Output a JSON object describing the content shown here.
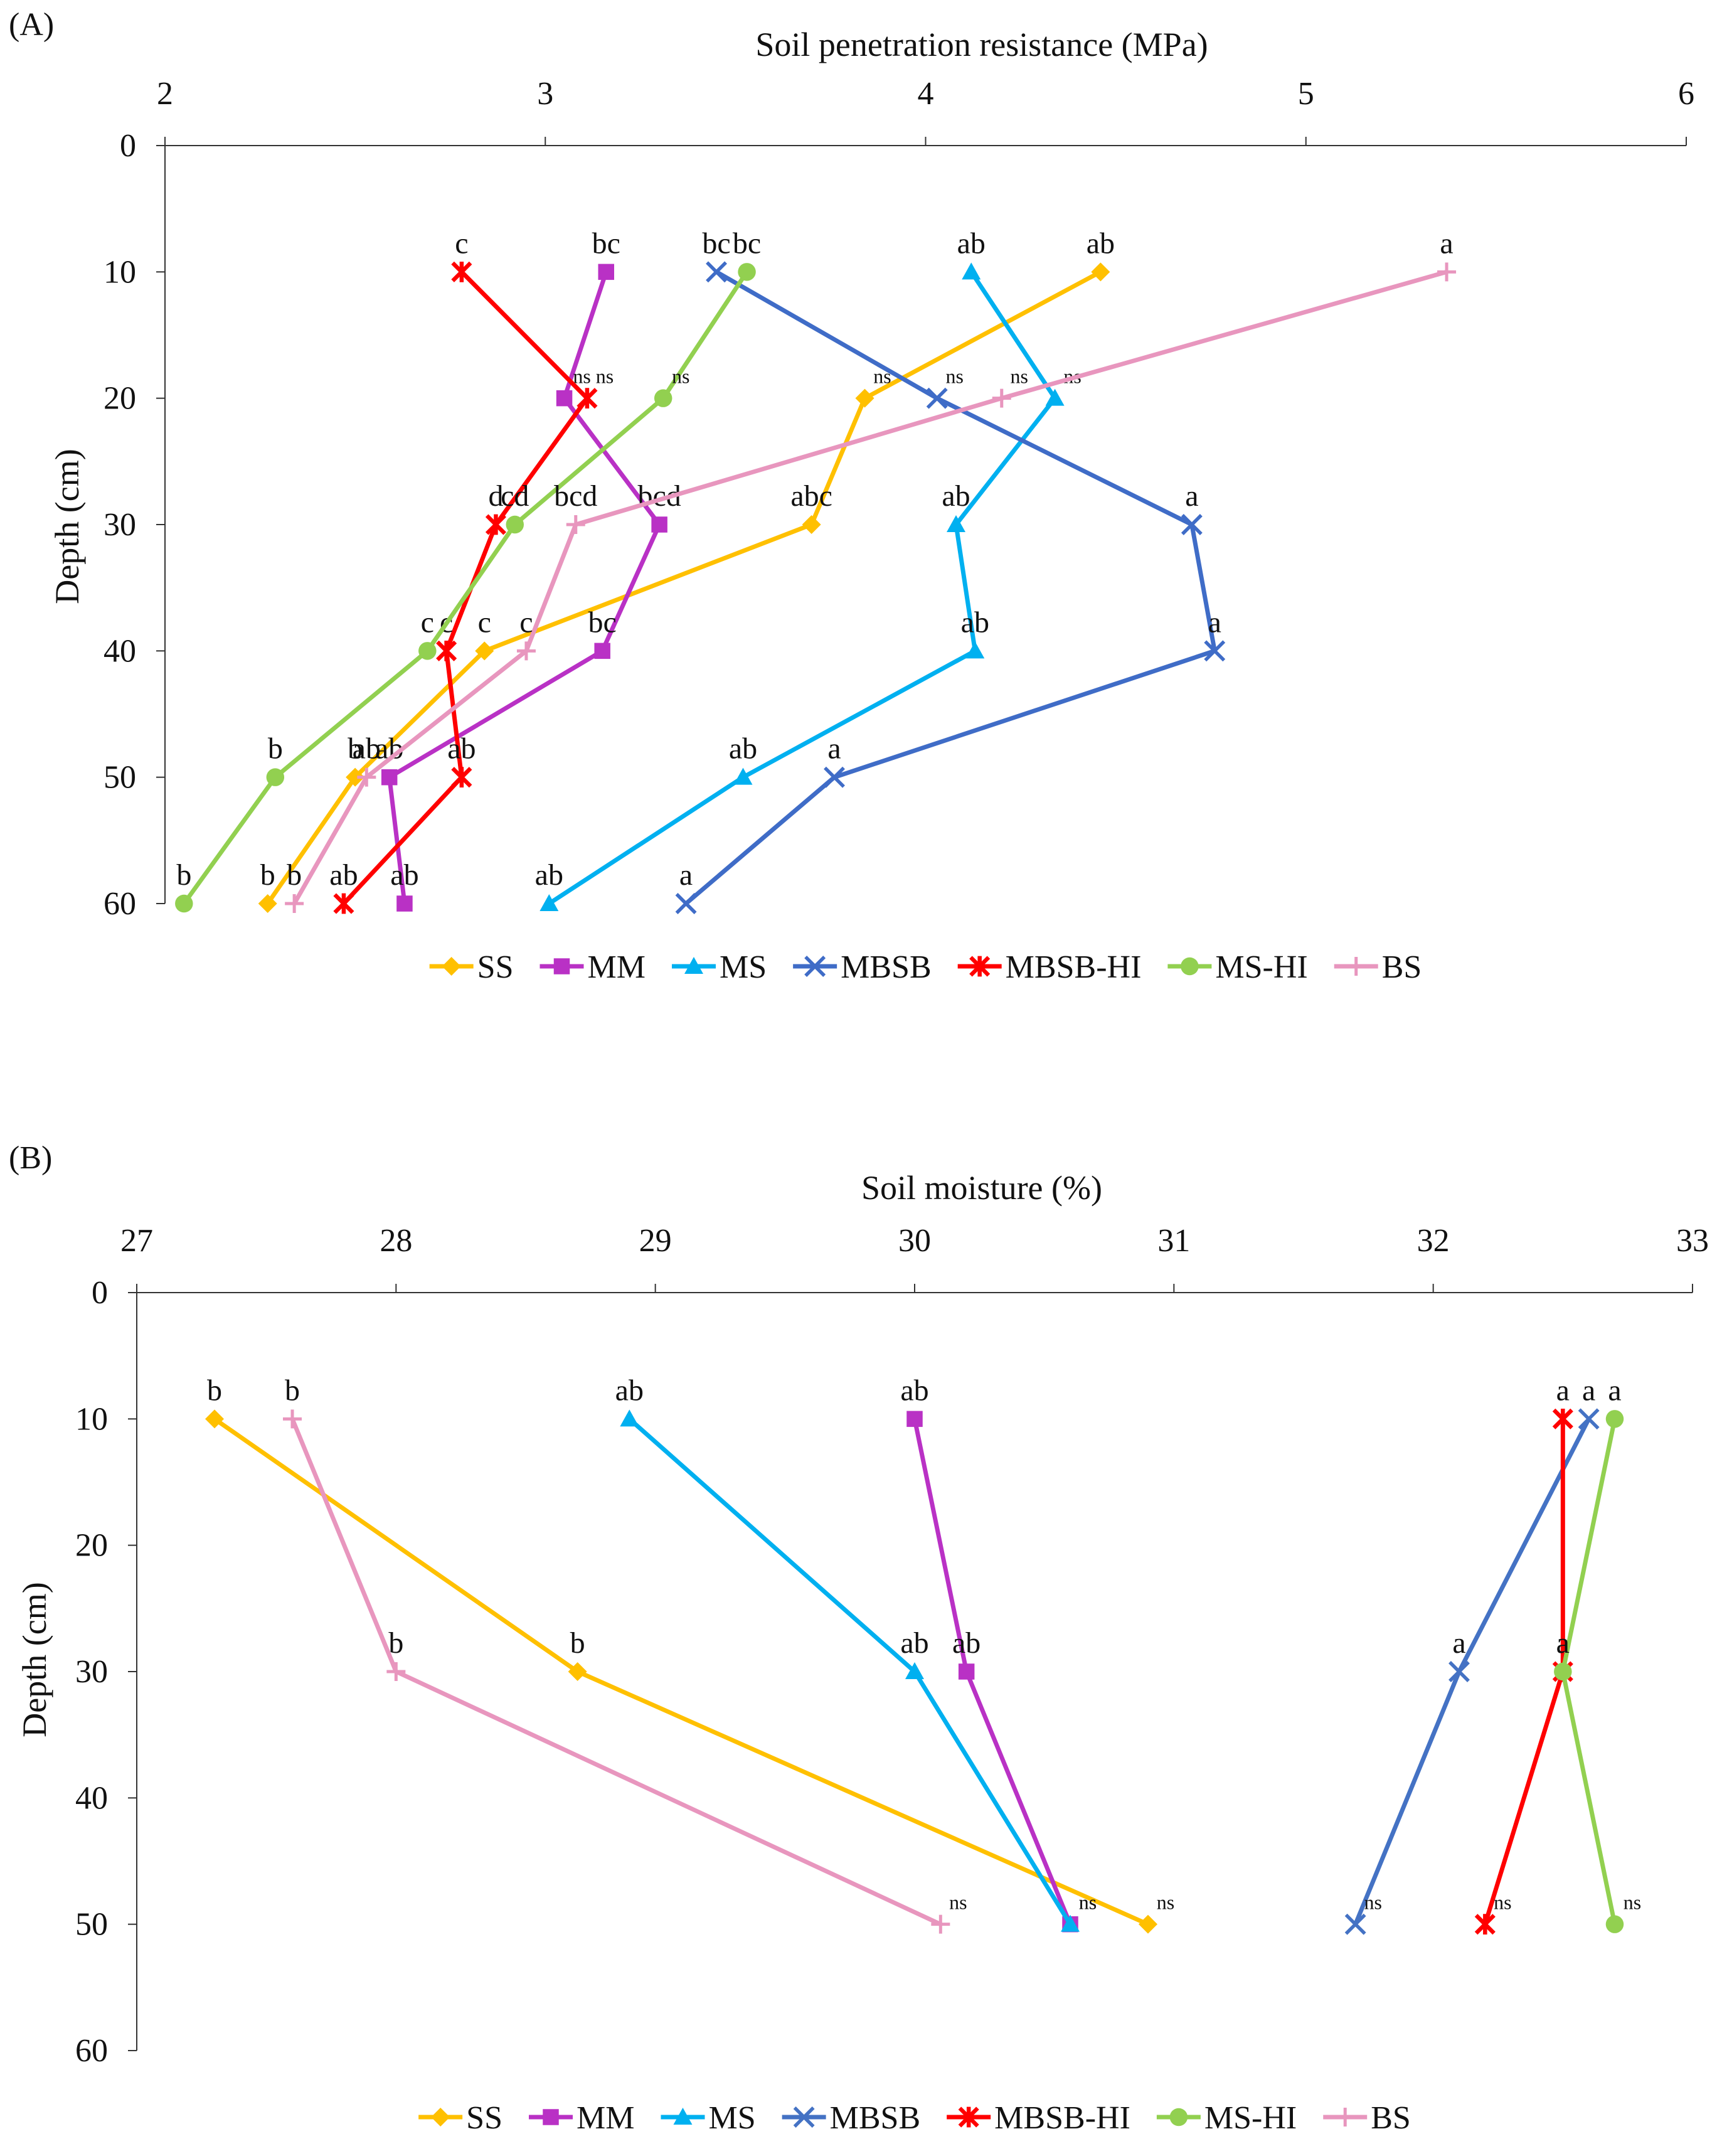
{
  "panels": [
    {
      "id": "A",
      "label": "(A)",
      "chart_data": {
        "type": "line",
        "title": "",
        "xlabel": "Soil penetration resistance (MPa)",
        "ylabel": "Depth (cm)",
        "xlim": [
          2,
          6
        ],
        "ylim": [
          0,
          60
        ],
        "xticks": [
          2,
          3,
          4,
          5,
          6
        ],
        "yticks": [
          0,
          10,
          20,
          30,
          40,
          50,
          60
        ],
        "x_axis_position": "top",
        "y_inverted": true,
        "grid": false,
        "legend_position": "bottom",
        "series": [
          {
            "name": "SS",
            "color": "#FFC000",
            "marker": "diamond",
            "points": [
              {
                "x": 4.46,
                "y": 10,
                "label": "ab"
              },
              {
                "x": 3.84,
                "y": 20,
                "label": "ns"
              },
              {
                "x": 3.7,
                "y": 30,
                "label": "abc"
              },
              {
                "x": 2.84,
                "y": 40,
                "label": "c"
              },
              {
                "x": 2.5,
                "y": 50,
                "label": "b"
              },
              {
                "x": 2.27,
                "y": 60,
                "label": "b"
              }
            ]
          },
          {
            "name": "MM",
            "color": "#B931C5",
            "marker": "square",
            "points": [
              {
                "x": 3.16,
                "y": 10,
                "label": "bc"
              },
              {
                "x": 3.05,
                "y": 20,
                "label": "ns"
              },
              {
                "x": 3.3,
                "y": 30,
                "label": "bcd"
              },
              {
                "x": 3.15,
                "y": 40,
                "label": "bc"
              },
              {
                "x": 2.59,
                "y": 50,
                "label": "ab"
              },
              {
                "x": 2.63,
                "y": 60,
                "label": "ab"
              }
            ]
          },
          {
            "name": "MS",
            "color": "#00B0F0",
            "marker": "triangle",
            "points": [
              {
                "x": 4.12,
                "y": 10,
                "label": "ab"
              },
              {
                "x": 4.34,
                "y": 20,
                "label": "ns"
              },
              {
                "x": 4.08,
                "y": 30,
                "label": "ab"
              },
              {
                "x": 4.13,
                "y": 40,
                "label": "ab"
              },
              {
                "x": 3.52,
                "y": 50,
                "label": "ab"
              },
              {
                "x": 3.01,
                "y": 60,
                "label": "ab"
              }
            ]
          },
          {
            "name": "MBSB",
            "color": "#3F6CC7",
            "marker": "x",
            "points": [
              {
                "x": 3.45,
                "y": 10,
                "label": "bc"
              },
              {
                "x": 4.03,
                "y": 20,
                "label": "ns"
              },
              {
                "x": 4.7,
                "y": 30,
                "label": "a"
              },
              {
                "x": 4.76,
                "y": 40,
                "label": "a"
              },
              {
                "x": 3.76,
                "y": 50,
                "label": "a"
              },
              {
                "x": 3.37,
                "y": 60,
                "label": "a"
              }
            ]
          },
          {
            "name": "MBSB-HI",
            "color": "#FF0000",
            "marker": "star",
            "points": [
              {
                "x": 2.78,
                "y": 10,
                "label": "c"
              },
              {
                "x": 3.11,
                "y": 20,
                "label": "ns"
              },
              {
                "x": 2.87,
                "y": 30,
                "label": "d"
              },
              {
                "x": 2.74,
                "y": 40,
                "label": "c"
              },
              {
                "x": 2.78,
                "y": 50,
                "label": "ab"
              },
              {
                "x": 2.47,
                "y": 60,
                "label": "ab"
              }
            ]
          },
          {
            "name": "MS-HI",
            "color": "#92D050",
            "marker": "circle",
            "points": [
              {
                "x": 3.53,
                "y": 10,
                "label": "bc"
              },
              {
                "x": 3.31,
                "y": 20,
                "label": "ns"
              },
              {
                "x": 2.92,
                "y": 30,
                "label": "cd"
              },
              {
                "x": 2.69,
                "y": 40,
                "label": "c"
              },
              {
                "x": 2.29,
                "y": 50,
                "label": "b"
              },
              {
                "x": 2.05,
                "y": 60,
                "label": "b"
              }
            ]
          },
          {
            "name": "BS",
            "color": "#E896BE",
            "marker": "plus",
            "points": [
              {
                "x": 5.37,
                "y": 10,
                "label": "a"
              },
              {
                "x": 4.2,
                "y": 20,
                "label": "ns"
              },
              {
                "x": 3.08,
                "y": 30,
                "label": "bcd"
              },
              {
                "x": 2.95,
                "y": 40,
                "label": "c"
              },
              {
                "x": 2.53,
                "y": 50,
                "label": "ab"
              },
              {
                "x": 2.34,
                "y": 60,
                "label": "b"
              }
            ]
          }
        ]
      }
    },
    {
      "id": "B",
      "label": "(B)",
      "chart_data": {
        "type": "line",
        "title": "",
        "xlabel": "Soil moisture (%)",
        "ylabel": "Depth (cm)",
        "xlim": [
          27,
          33
        ],
        "ylim": [
          0,
          60
        ],
        "xticks": [
          27,
          28,
          29,
          30,
          31,
          32,
          33
        ],
        "yticks": [
          0,
          10,
          20,
          30,
          40,
          50,
          60
        ],
        "x_axis_position": "top",
        "y_inverted": true,
        "grid": false,
        "legend_position": "bottom",
        "series": [
          {
            "name": "SS",
            "color": "#FFC000",
            "marker": "diamond",
            "points": [
              {
                "x": 27.3,
                "y": 10,
                "label": "b"
              },
              {
                "x": 28.7,
                "y": 30,
                "label": "b"
              },
              {
                "x": 30.9,
                "y": 50,
                "label": "ns"
              }
            ]
          },
          {
            "name": "MM",
            "color": "#B931C5",
            "marker": "square",
            "points": [
              {
                "x": 30.0,
                "y": 10,
                "label": "ab"
              },
              {
                "x": 30.2,
                "y": 30,
                "label": "ab"
              },
              {
                "x": 30.6,
                "y": 50,
                "label": "ns"
              }
            ]
          },
          {
            "name": "MS",
            "color": "#00B0F0",
            "marker": "triangle",
            "points": [
              {
                "x": 28.9,
                "y": 10,
                "label": "ab"
              },
              {
                "x": 30.0,
                "y": 30,
                "label": "ab"
              },
              {
                "x": 30.6,
                "y": 50,
                "label": "ns"
              }
            ]
          },
          {
            "name": "MBSB",
            "color": "#4472C4",
            "marker": "x",
            "points": [
              {
                "x": 32.6,
                "y": 10,
                "label": "a"
              },
              {
                "x": 32.1,
                "y": 30,
                "label": "a"
              },
              {
                "x": 31.7,
                "y": 50,
                "label": "ns"
              }
            ]
          },
          {
            "name": "MBSB-HI",
            "color": "#FF0000",
            "marker": "star",
            "points": [
              {
                "x": 32.5,
                "y": 10,
                "label": "a"
              },
              {
                "x": 32.5,
                "y": 30,
                "label": "a"
              },
              {
                "x": 32.2,
                "y": 50,
                "label": "ns"
              }
            ]
          },
          {
            "name": "MS-HI",
            "color": "#92D050",
            "marker": "circle",
            "points": [
              {
                "x": 32.7,
                "y": 10,
                "label": "a"
              },
              {
                "x": 32.5,
                "y": 30,
                "label": "a"
              },
              {
                "x": 32.7,
                "y": 50,
                "label": "ns"
              }
            ]
          },
          {
            "name": "BS",
            "color": "#E896BE",
            "marker": "plus",
            "points": [
              {
                "x": 27.6,
                "y": 10,
                "label": "b"
              },
              {
                "x": 28.0,
                "y": 30,
                "label": "b"
              },
              {
                "x": 30.1,
                "y": 50,
                "label": "ns"
              }
            ]
          }
        ]
      }
    }
  ]
}
